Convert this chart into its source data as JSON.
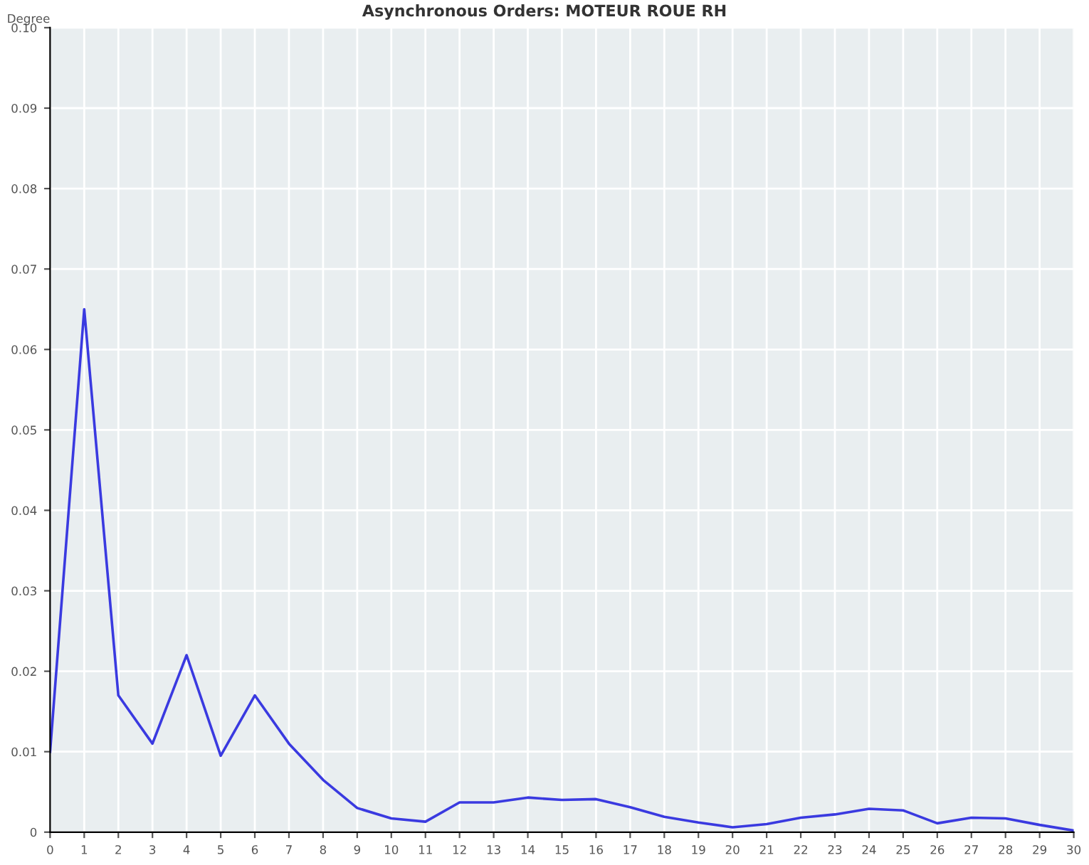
{
  "chart_data": {
    "type": "line",
    "title": "Asynchronous Orders: MOTEUR ROUE RH",
    "ylabel": "Degree",
    "x": [
      0,
      1,
      2,
      3,
      4,
      5,
      6,
      7,
      8,
      9,
      10,
      11,
      12,
      13,
      14,
      15,
      16,
      17,
      18,
      19,
      20,
      21,
      22,
      23,
      24,
      25,
      26,
      27,
      28,
      29,
      30
    ],
    "series": [
      {
        "color": "#3a3ae0",
        "values": [
          0.01,
          0.065,
          0.017,
          0.011,
          0.022,
          0.0095,
          0.017,
          0.011,
          0.0065,
          0.003,
          0.0017,
          0.0013,
          0.0037,
          0.0037,
          0.0043,
          0.004,
          0.0041,
          0.0031,
          0.0019,
          0.0012,
          0.0006,
          0.001,
          0.0018,
          0.0022,
          0.0029,
          0.0027,
          0.0011,
          0.0018,
          0.0017,
          0.0009,
          0.0002
        ]
      }
    ],
    "xlim": [
      0,
      30
    ],
    "xticks": [
      0,
      1,
      2,
      3,
      4,
      5,
      6,
      7,
      8,
      9,
      10,
      11,
      12,
      13,
      14,
      15,
      16,
      17,
      18,
      19,
      20,
      21,
      22,
      23,
      24,
      25,
      26,
      27,
      28,
      29,
      30
    ],
    "ylim": [
      0,
      0.1
    ],
    "yticks": [
      0,
      0.01,
      0.02,
      0.03,
      0.04,
      0.05,
      0.06,
      0.07,
      0.08,
      0.09,
      {
        "value": 0.1,
        "label": "0.10"
      }
    ],
    "grid": true,
    "legend": false,
    "marker": "none",
    "line_style": "solid"
  }
}
